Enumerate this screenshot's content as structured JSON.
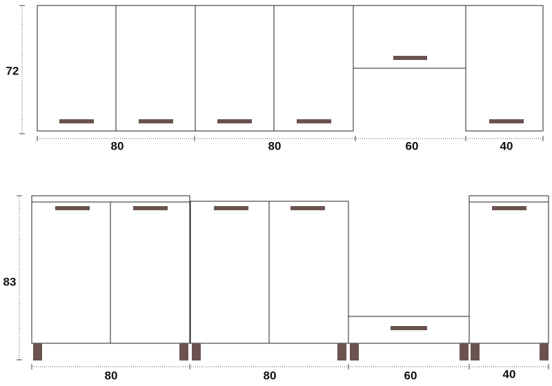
{
  "top": {
    "height_label": "72",
    "width_labels": [
      "80",
      "80",
      "60",
      "40"
    ]
  },
  "bottom": {
    "height_label": "83",
    "width_labels": [
      "80",
      "80",
      "60",
      "40"
    ]
  }
}
